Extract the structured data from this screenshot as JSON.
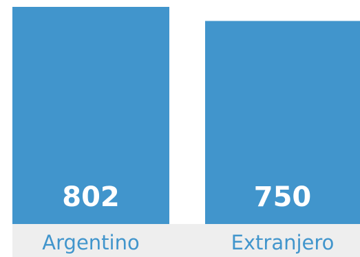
{
  "chart_data": {
    "type": "bar",
    "categories": [
      "Argentino",
      "Extranjero"
    ],
    "values": [
      802,
      750
    ],
    "value_labels": [
      "802",
      "750"
    ],
    "ylim": [
      0,
      802
    ],
    "grid": false,
    "legend": "none"
  },
  "colors": {
    "bar": "#4195cc",
    "label_text": "#4195cc",
    "value_text": "#ffffff",
    "axis_band": "#eeeeee",
    "background": "#ffffff"
  }
}
